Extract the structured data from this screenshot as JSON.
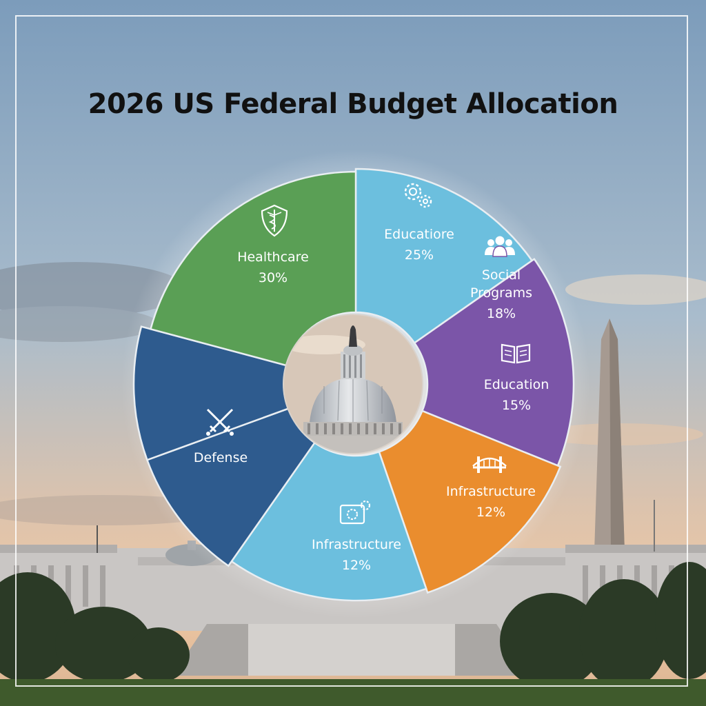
{
  "chart_data": {
    "type": "pie",
    "style": "donut",
    "title": "2026 US Federal Budget Allocation",
    "slices": [
      {
        "label": "Educatiore",
        "value": 25,
        "value_text": "25%",
        "color": "#6cbfde",
        "icon": "gears-icon"
      },
      {
        "label": "Social Programs",
        "label_lines": [
          "Social",
          "Programs"
        ],
        "value": 18,
        "value_text": "18%",
        "color": "#7b55a8",
        "icon": "people-icon"
      },
      {
        "label": "Education",
        "value": 15,
        "value_text": "15%",
        "color": "#ea8d2e",
        "icon": "book-icon"
      },
      {
        "label": "Infrastructure",
        "value": 12,
        "value_text": "12%",
        "color": "#6cbfde",
        "icon": "bridge-icon"
      },
      {
        "label": "Infrastructure",
        "value": 12,
        "value_text": "12%",
        "color": "#2e5b8e",
        "icon": "gear-machine-icon"
      },
      {
        "label": "Defense",
        "value": null,
        "value_text": "",
        "color": "#2e5b8e",
        "icon": "crossed-swords-icon"
      },
      {
        "label": "Healthcare",
        "value": 30,
        "value_text": "30%",
        "color": "#5a9f55",
        "icon": "caduceus-shield-icon"
      }
    ],
    "legend": "none",
    "center_image": "capitol-dome"
  },
  "colors": {
    "sky_top": "#7c9cbb",
    "sky_bottom": "#e8c6a6",
    "title": "#111111"
  }
}
